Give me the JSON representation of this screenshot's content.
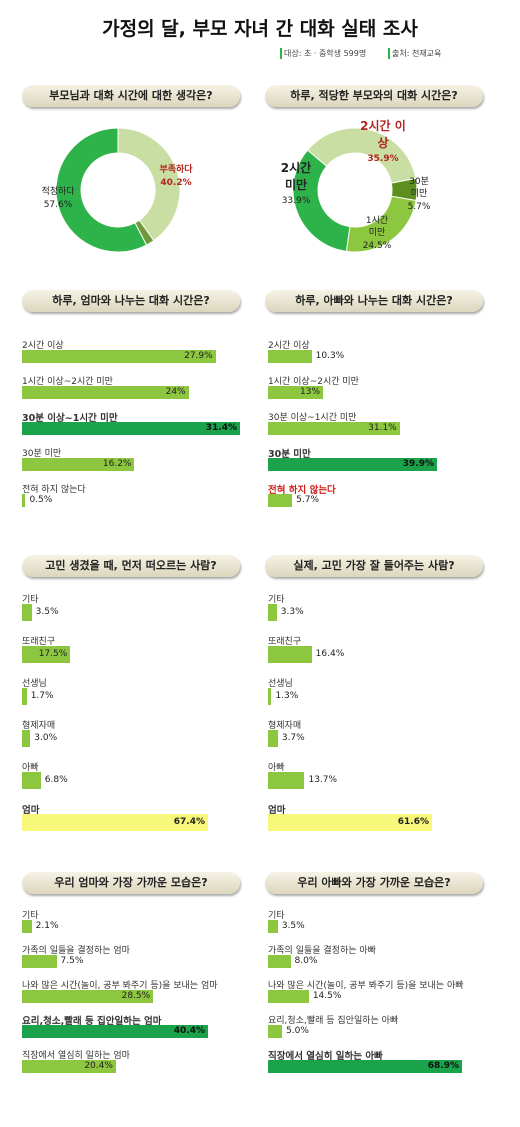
{
  "header": {
    "title": "가정의 달, 부모 자녀 간 대화 실태 조사",
    "target": "대상: 초 · 중학생 599명",
    "source": "출처: 천재교육"
  },
  "chart_data": [
    {
      "type": "donut",
      "title": "부모님과 대화 시간에 대한 생각은?",
      "categories": [
        "부족하다",
        null,
        "적정하다"
      ],
      "values": [
        40.2,
        2.2,
        57.6
      ],
      "value_labels": [
        "40.2%",
        null,
        "57.6%"
      ],
      "colors": [
        "#c8dea3",
        "#6f9a3a",
        "#2db34a"
      ],
      "highlight": 0
    },
    {
      "type": "donut",
      "title": "하루, 적당한 부모와의 대화 시간은?",
      "categories": [
        "2시간 이상",
        "30분 미만",
        "1시간 미만",
        "2시간 미만"
      ],
      "values": [
        35.9,
        5.7,
        24.5,
        33.9
      ],
      "value_labels": [
        "35.9%",
        "5.7%",
        "24.5%",
        "33.9%"
      ],
      "colors": [
        "#c8dea3",
        "#5d8f1f",
        "#8dc63f",
        "#2db34a"
      ],
      "highlight": 0
    },
    {
      "type": "bar",
      "title": "하루, 엄마와 나누는 대화 시간은?",
      "categories": [
        "2시간 이상",
        "1시간 이상~2시간 미만",
        "30분 이상~1시간 미만",
        "30분 미만",
        "전혀 하지 않는다"
      ],
      "values": [
        27.9,
        24,
        31.4,
        16.2,
        0.5
      ],
      "value_labels": [
        "27.9%",
        "24%",
        "31.4%",
        "16.2%",
        "0.5%"
      ],
      "color": "#8dc63f",
      "highlight": 2,
      "highlight_color": "#1aa34a"
    },
    {
      "type": "bar",
      "title": "하루, 아빠와 나누는 대화 시간은?",
      "categories": [
        "2시간 이상",
        "1시간 이상~2시간 미만",
        "30분 이상~1시간 미만",
        "30분 미만",
        "전혀 하지 않는다"
      ],
      "values": [
        10.3,
        13,
        31.1,
        39.9,
        5.7
      ],
      "value_labels": [
        "10.3%",
        "13%",
        "31.1%",
        "39.9%",
        "5.7%"
      ],
      "color": "#8dc63f",
      "highlight": 3,
      "highlight_color": "#1aa34a",
      "alert": 4
    },
    {
      "type": "bar",
      "title": "고민 생겼을 때, 먼저 떠오르는 사람?",
      "categories": [
        "기타",
        "또래친구",
        "선생님",
        "형제자매",
        "아빠",
        "엄마"
      ],
      "values": [
        3.5,
        17.5,
        1.7,
        3.0,
        6.8,
        67.4
      ],
      "value_labels": [
        "3.5%",
        "17.5%",
        "1.7%",
        "3.0%",
        "6.8%",
        "67.4%"
      ],
      "color": "#8dc63f",
      "highlight": 5,
      "highlight_color": "#f7f77a"
    },
    {
      "type": "bar",
      "title": "실제, 고민 가장 잘 들어주는 사람?",
      "categories": [
        "기타",
        "또래친구",
        "선생님",
        "형제자매",
        "아빠",
        "엄마"
      ],
      "values": [
        3.3,
        16.4,
        1.3,
        3.7,
        13.7,
        61.6
      ],
      "value_labels": [
        "3.3%",
        "16.4%",
        "1.3%",
        "3.7%",
        "13.7%",
        "61.6%"
      ],
      "color": "#8dc63f",
      "highlight": 5,
      "highlight_color": "#f7f77a"
    },
    {
      "type": "bar",
      "title": "우리 엄마와 가장 가까운 모습은?",
      "categories": [
        "기타",
        "가족의 일들을 결정하는 엄마",
        "나와 많은 시간(놀이, 공부 봐주기 등)을 보내는 엄마",
        "요리,청소,빨래 등 집안일하는 엄마",
        "직장에서 열심히 일하는 엄마"
      ],
      "values": [
        2.1,
        7.5,
        28.5,
        40.4,
        20.4
      ],
      "value_labels": [
        "2.1%",
        "7.5%",
        "28.5%",
        "40.4%",
        "20.4%"
      ],
      "color": "#8dc63f",
      "highlight": 3,
      "highlight_color": "#1aa34a"
    },
    {
      "type": "bar",
      "title": "우리 아빠와 가장 가까운 모습은?",
      "categories": [
        "기타",
        "가족의 일들을 결정하는 아빠",
        "나와 많은 시간(놀이, 공부 봐주기 등)을 보내는 아빠",
        "요리,청소,빨래 등 집안일하는 아빠",
        "직장에서 열심히 일하는 아빠"
      ],
      "values": [
        3.5,
        8.0,
        14.5,
        5.0,
        68.9
      ],
      "value_labels": [
        "3.5%",
        "8.0%",
        "14.5%",
        "5.0%",
        "68.9%"
      ],
      "color": "#8dc63f",
      "highlight": 4,
      "highlight_color": "#1aa34a"
    }
  ]
}
